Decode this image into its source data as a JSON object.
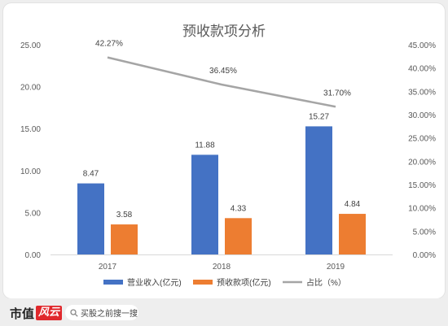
{
  "chart_data": {
    "type": "bar",
    "title": "预收款项分析",
    "categories": [
      "2017",
      "2018",
      "2019"
    ],
    "series": [
      {
        "name": "营业收入(亿元)",
        "kind": "bar",
        "axis": "left",
        "color": "#4472c4",
        "values": [
          8.47,
          11.88,
          15.27
        ],
        "labels": [
          "8.47",
          "11.88",
          "15.27"
        ]
      },
      {
        "name": "预收款项(亿元)",
        "kind": "bar",
        "axis": "left",
        "color": "#ed7d31",
        "values": [
          3.58,
          4.33,
          4.84
        ],
        "labels": [
          "3.58",
          "4.33",
          "4.84"
        ]
      },
      {
        "name": "占比（%）",
        "kind": "line",
        "axis": "right",
        "color": "#a5a5a5",
        "values": [
          42.27,
          36.45,
          31.7
        ],
        "labels": [
          "42.27%",
          "36.45%",
          "31.70%"
        ]
      }
    ],
    "y_left": {
      "min": 0,
      "max": 25,
      "ticks": [
        "0.00",
        "5.00",
        "10.00",
        "15.00",
        "20.00",
        "25.00"
      ]
    },
    "y_right": {
      "min": 0,
      "max": 45,
      "ticks": [
        "0.00%",
        "5.00%",
        "10.00%",
        "15.00%",
        "20.00%",
        "25.00%",
        "30.00%",
        "35.00%",
        "40.00%",
        "45.00%"
      ]
    },
    "legend_position": "bottom",
    "grid": false
  },
  "footer": {
    "brand": "市值",
    "brand_stamp": "风云",
    "search_text": "买股之前搜一搜"
  }
}
